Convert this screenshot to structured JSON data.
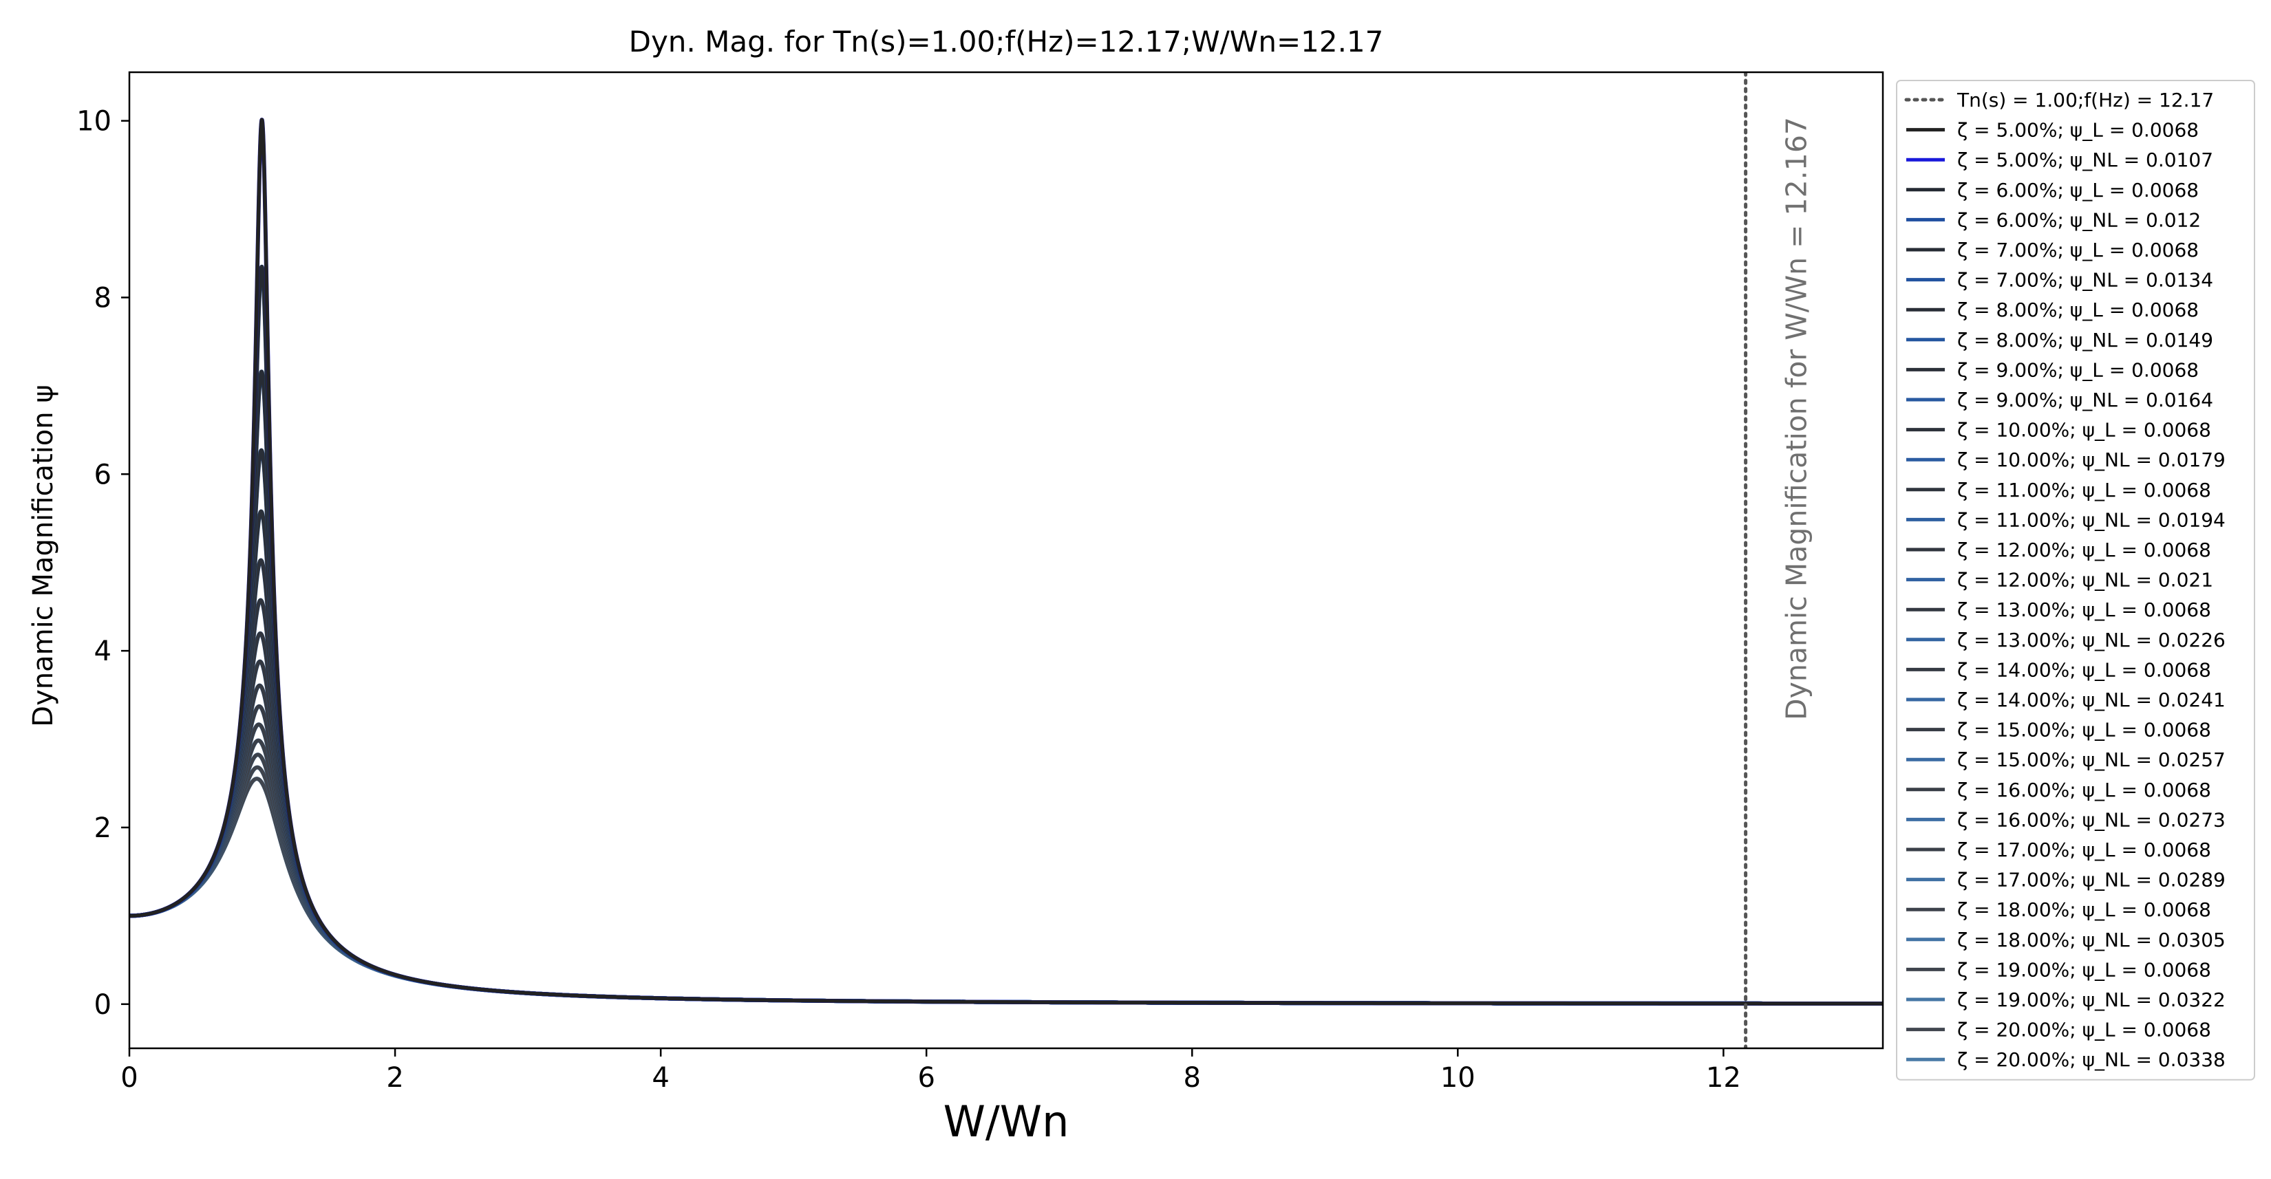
{
  "chart_data": {
    "type": "line",
    "title": "Dyn. Mag. for Tn(s)=1.00;f(Hz)=12.17;W/Wn=12.17",
    "xlabel": "W/Wn",
    "ylabel": "Dynamic Magnification ψ",
    "xlim": [
      0,
      13.2
    ],
    "ylim": [
      -0.5,
      10.55
    ],
    "xticks": [
      0,
      2,
      4,
      6,
      8,
      10,
      12
    ],
    "yticks": [
      0,
      2,
      4,
      6,
      8,
      10
    ],
    "grid": false,
    "legend_position": "outside-right",
    "vline": {
      "x": 12.167,
      "label": "Tn(s) = 1.00;f(Hz) = 12.17",
      "annotation": "Dynamic Magnification for W/Wn = 12.167",
      "color": "#555555"
    },
    "series": [
      {
        "name": "ζ = 5.00%; ψ_L = 0.0068",
        "zeta": 0.05,
        "kind": "linear",
        "color": "#222222"
      },
      {
        "name": "ζ = 5.00%; ψ_NL = 0.0107",
        "zeta": 0.05,
        "kind": "nonlinear",
        "color": "#1a1adb"
      },
      {
        "name": "ζ = 6.00%; ψ_L = 0.0068",
        "zeta": 0.06,
        "kind": "linear",
        "color": "#252a33"
      },
      {
        "name": "ζ = 6.00%; ψ_NL = 0.012",
        "zeta": 0.06,
        "kind": "nonlinear",
        "color": "#1f4fa0"
      },
      {
        "name": "ζ = 7.00%; ψ_L = 0.0068",
        "zeta": 0.07,
        "kind": "linear",
        "color": "#272c35"
      },
      {
        "name": "ζ = 7.00%; ψ_NL = 0.0134",
        "zeta": 0.07,
        "kind": "nonlinear",
        "color": "#2253a0"
      },
      {
        "name": "ζ = 8.00%; ψ_L = 0.0068",
        "zeta": 0.08,
        "kind": "linear",
        "color": "#292e37"
      },
      {
        "name": "ζ = 8.00%; ψ_NL = 0.0149",
        "zeta": 0.08,
        "kind": "nonlinear",
        "color": "#2556a0"
      },
      {
        "name": "ζ = 9.00%; ψ_L = 0.0068",
        "zeta": 0.09,
        "kind": "linear",
        "color": "#2b3039"
      },
      {
        "name": "ζ = 9.00%; ψ_NL = 0.0164",
        "zeta": 0.09,
        "kind": "nonlinear",
        "color": "#2859a0"
      },
      {
        "name": "ζ = 10.00%; ψ_L = 0.0068",
        "zeta": 0.1,
        "kind": "linear",
        "color": "#2d323b"
      },
      {
        "name": "ζ = 10.00%; ψ_NL = 0.0179",
        "zeta": 0.1,
        "kind": "nonlinear",
        "color": "#2b5ca1"
      },
      {
        "name": "ζ = 11.00%; ψ_L = 0.0068",
        "zeta": 0.11,
        "kind": "linear",
        "color": "#2f343d"
      },
      {
        "name": "ζ = 11.00%; ψ_NL = 0.0194",
        "zeta": 0.11,
        "kind": "nonlinear",
        "color": "#2e5fa1"
      },
      {
        "name": "ζ = 12.00%; ψ_L = 0.0068",
        "zeta": 0.12,
        "kind": "linear",
        "color": "#31363f"
      },
      {
        "name": "ζ = 12.00%; ψ_NL = 0.021",
        "zeta": 0.12,
        "kind": "nonlinear",
        "color": "#3162a2"
      },
      {
        "name": "ζ = 13.00%; ψ_L = 0.0068",
        "zeta": 0.13,
        "kind": "linear",
        "color": "#333841"
      },
      {
        "name": "ζ = 13.00%; ψ_NL = 0.0226",
        "zeta": 0.13,
        "kind": "nonlinear",
        "color": "#3465a2"
      },
      {
        "name": "ζ = 14.00%; ψ_L = 0.0068",
        "zeta": 0.14,
        "kind": "linear",
        "color": "#353a43"
      },
      {
        "name": "ζ = 14.00%; ψ_NL = 0.0241",
        "zeta": 0.14,
        "kind": "nonlinear",
        "color": "#3768a3"
      },
      {
        "name": "ζ = 15.00%; ψ_L = 0.0068",
        "zeta": 0.15,
        "kind": "linear",
        "color": "#373c45"
      },
      {
        "name": "ζ = 15.00%; ψ_NL = 0.0257",
        "zeta": 0.15,
        "kind": "nonlinear",
        "color": "#3a6ba3"
      },
      {
        "name": "ζ = 16.00%; ψ_L = 0.0068",
        "zeta": 0.16,
        "kind": "linear",
        "color": "#393e47"
      },
      {
        "name": "ζ = 16.00%; ψ_NL = 0.0273",
        "zeta": 0.16,
        "kind": "nonlinear",
        "color": "#3d6ea4"
      },
      {
        "name": "ζ = 17.00%; ψ_L = 0.0068",
        "zeta": 0.17,
        "kind": "linear",
        "color": "#3b4049"
      },
      {
        "name": "ζ = 17.00%; ψ_NL = 0.0289",
        "zeta": 0.17,
        "kind": "nonlinear",
        "color": "#4071a4"
      },
      {
        "name": "ζ = 18.00%; ψ_L = 0.0068",
        "zeta": 0.18,
        "kind": "linear",
        "color": "#3d424b"
      },
      {
        "name": "ζ = 18.00%; ψ_NL = 0.0305",
        "zeta": 0.18,
        "kind": "nonlinear",
        "color": "#4374a5"
      },
      {
        "name": "ζ = 19.00%; ψ_L = 0.0068",
        "zeta": 0.19,
        "kind": "linear",
        "color": "#3f444d"
      },
      {
        "name": "ζ = 19.00%; ψ_NL = 0.0322",
        "zeta": 0.19,
        "kind": "nonlinear",
        "color": "#4677a5"
      },
      {
        "name": "ζ = 20.00%; ψ_L = 0.0068",
        "zeta": 0.2,
        "kind": "linear",
        "color": "#41464f"
      },
      {
        "name": "ζ = 20.00%; ψ_NL = 0.0338",
        "zeta": 0.2,
        "kind": "nonlinear",
        "color": "#497aa6"
      }
    ]
  }
}
